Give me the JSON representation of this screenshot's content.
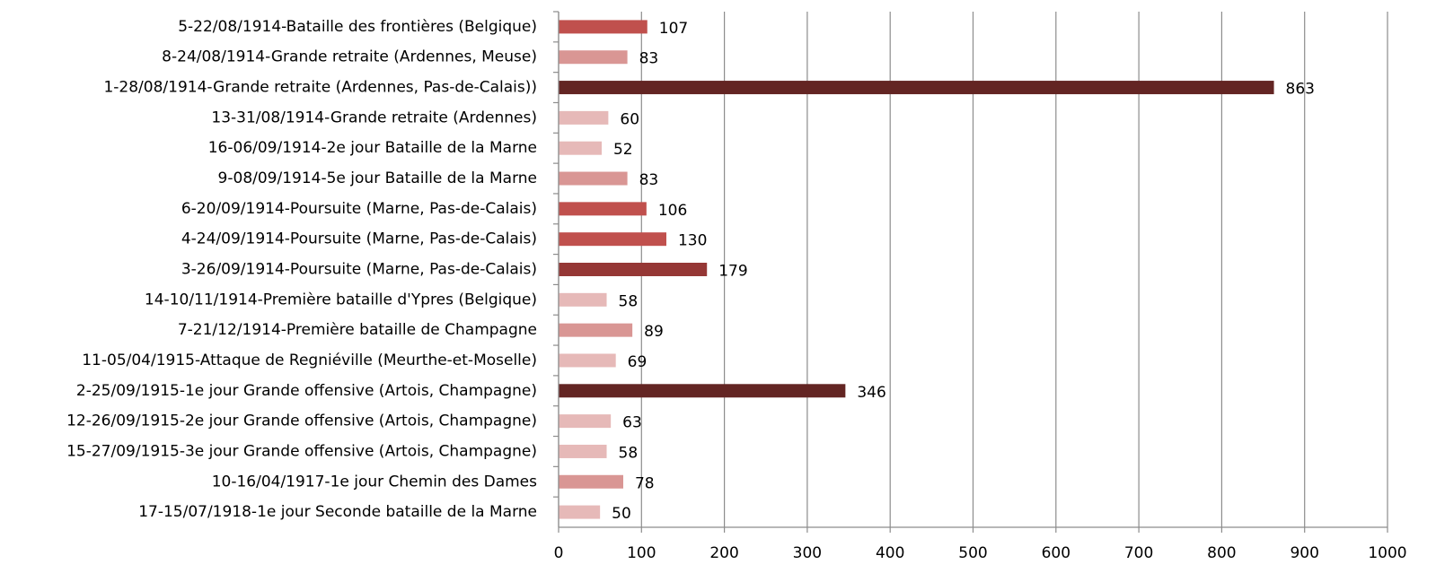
{
  "chart_data": {
    "type": "bar",
    "orientation": "horizontal",
    "categories": [
      "5-22/08/1914-Bataille des frontières (Belgique)",
      "8-24/08/1914-Grande retraite (Ardennes, Meuse)",
      "1-28/08/1914-Grande retraite (Ardennes, Pas-de-Calais))",
      "13-31/08/1914-Grande retraite (Ardennes)",
      "16-06/09/1914-2e jour Bataille de la Marne",
      "9-08/09/1914-5e jour Bataille de la Marne",
      "6-20/09/1914-Poursuite (Marne, Pas-de-Calais)",
      "4-24/09/1914-Poursuite (Marne, Pas-de-Calais)",
      "3-26/09/1914-Poursuite (Marne, Pas-de-Calais)",
      "14-10/11/1914-Première bataille d'Ypres (Belgique)",
      "7-21/12/1914-Première bataille de Champagne",
      "11-05/04/1915-Attaque de Regniéville (Meurthe-et-Moselle)",
      "2-25/09/1915-1e jour Grande offensive (Artois, Champagne)",
      "12-26/09/1915-2e jour Grande offensive (Artois, Champagne)",
      "15-27/09/1915-3e jour Grande offensive (Artois, Champagne)",
      "10-16/04/1917-1e jour Chemin des Dames",
      "17-15/07/1918-1e jour Seconde bataille de la Marne"
    ],
    "values": [
      107,
      83,
      863,
      60,
      52,
      83,
      106,
      130,
      179,
      58,
      89,
      69,
      346,
      63,
      58,
      78,
      50
    ],
    "colors": [
      "#c0504d",
      "#d99694",
      "#632523",
      "#e6b9b8",
      "#e6b9b8",
      "#d99694",
      "#c0504d",
      "#c0504d",
      "#953735",
      "#e6b9b8",
      "#d99694",
      "#e6b9b8",
      "#632523",
      "#e6b9b8",
      "#e6b9b8",
      "#d99694",
      "#e6b9b8"
    ],
    "xlim": [
      0,
      1000
    ],
    "xticks": [
      0,
      100,
      200,
      300,
      400,
      500,
      600,
      700,
      800,
      900,
      1000
    ],
    "grid": true
  }
}
